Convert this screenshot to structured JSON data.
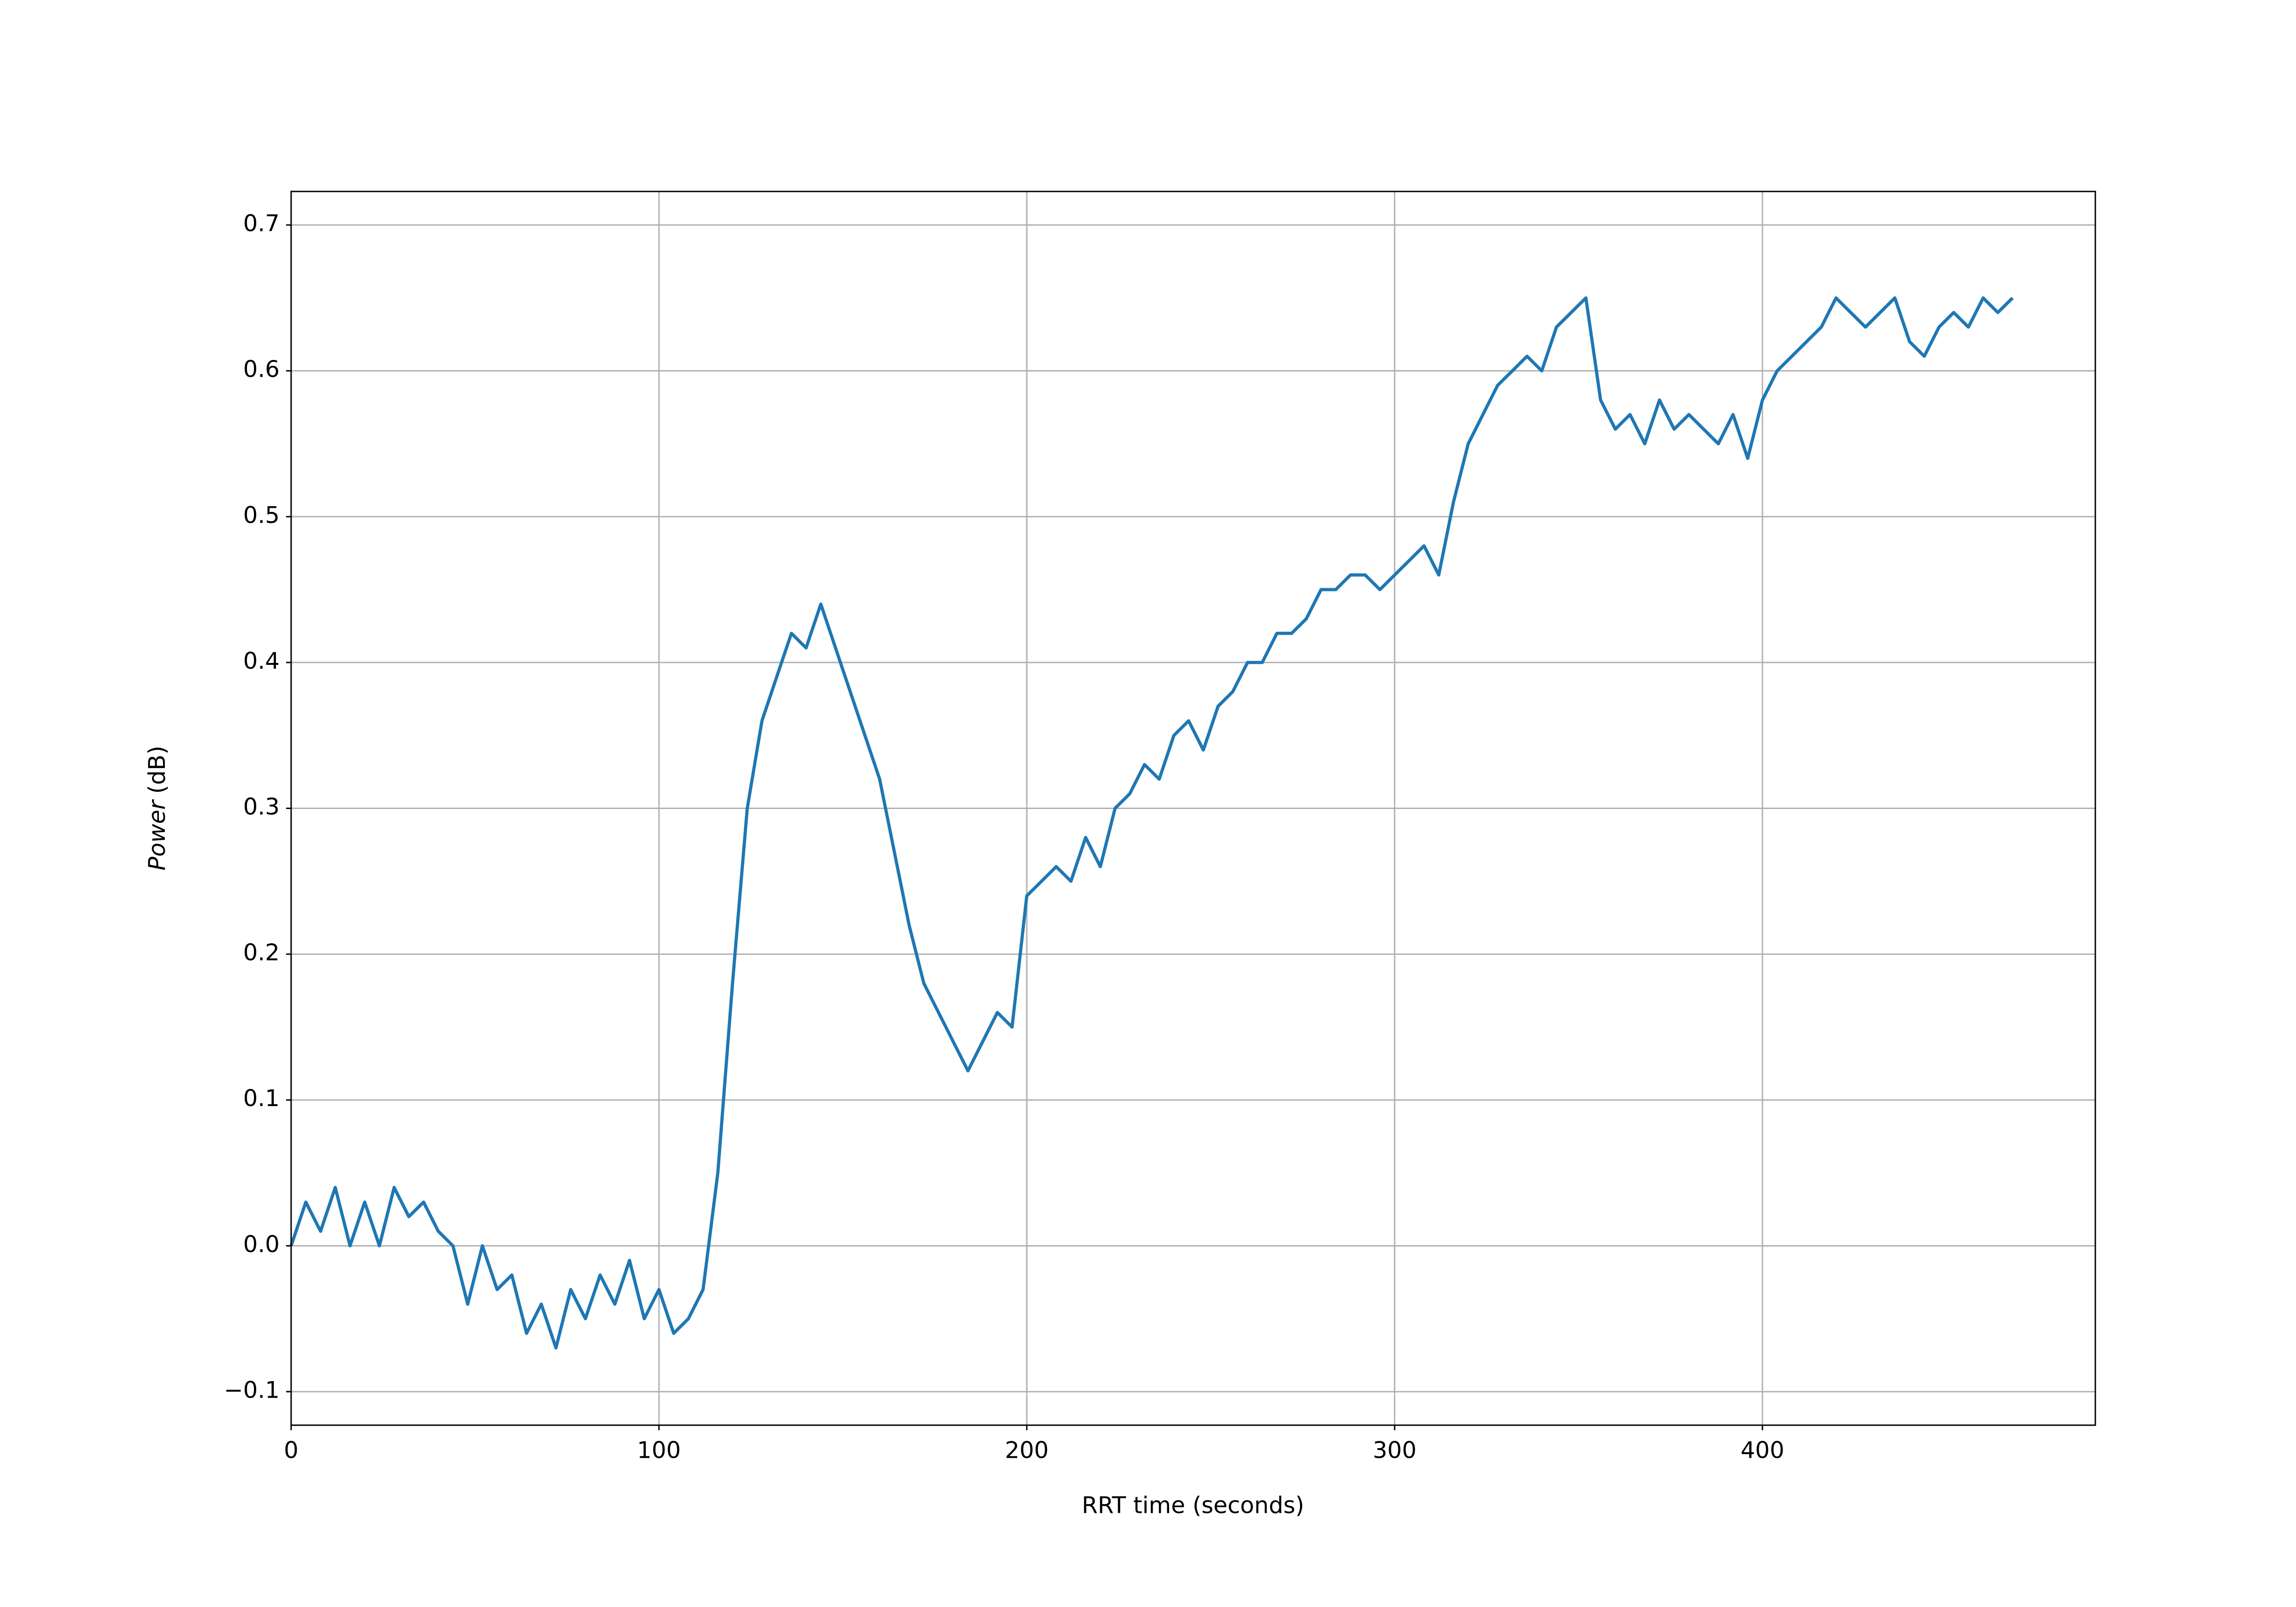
{
  "chart_data": {
    "type": "line",
    "xlabel": "RRT time (seconds)",
    "ylabel": [
      "Power",
      "(dB)"
    ],
    "color": "#1f77b4",
    "grid": true,
    "xlim": [
      0,
      490.5
    ],
    "ylim": [
      -0.123,
      0.723
    ],
    "xticks": [
      0,
      100,
      200,
      300,
      400
    ],
    "yticks": [
      {
        "value": -0.1,
        "label": "−0.1"
      },
      {
        "value": 0,
        "label": "0.0"
      },
      0.1,
      0.2,
      0.3,
      0.4,
      0.5,
      0.6,
      0.7
    ],
    "x": [
      0,
      4,
      8,
      12,
      16,
      20,
      24,
      28,
      32,
      36,
      40,
      44,
      48,
      52,
      56,
      60,
      64,
      68,
      72,
      76,
      80,
      84,
      88,
      92,
      96,
      100,
      104,
      108,
      112,
      116,
      120,
      124,
      128,
      132,
      136,
      140,
      144,
      148,
      152,
      156,
      160,
      164,
      168,
      172,
      176,
      180,
      184,
      188,
      192,
      196,
      200,
      204,
      208,
      212,
      216,
      220,
      224,
      228,
      232,
      236,
      240,
      244,
      248,
      252,
      256,
      260,
      264,
      268,
      272,
      276,
      280,
      284,
      288,
      292,
      296,
      300,
      304,
      308,
      312,
      316,
      320,
      324,
      328,
      332,
      336,
      340,
      344,
      348,
      352,
      356,
      360,
      364,
      368,
      372,
      376,
      380,
      384,
      388,
      392,
      396,
      400,
      404,
      408,
      412,
      416,
      420,
      424,
      428,
      432,
      436,
      440,
      444,
      448,
      452,
      456,
      460,
      464,
      468
    ],
    "values": [
      0.0,
      0.03,
      0.01,
      0.04,
      0.0,
      0.03,
      0.0,
      0.04,
      0.02,
      0.03,
      0.01,
      0.0,
      -0.04,
      0.0,
      -0.03,
      -0.02,
      -0.06,
      -0.04,
      -0.07,
      -0.03,
      -0.05,
      -0.02,
      -0.04,
      -0.01,
      -0.05,
      -0.03,
      -0.06,
      -0.05,
      -0.03,
      0.05,
      0.18,
      0.3,
      0.36,
      0.39,
      0.42,
      0.41,
      0.44,
      0.41,
      0.38,
      0.35,
      0.32,
      0.27,
      0.22,
      0.18,
      0.16,
      0.14,
      0.12,
      0.14,
      0.16,
      0.15,
      0.24,
      0.25,
      0.26,
      0.25,
      0.28,
      0.26,
      0.3,
      0.31,
      0.33,
      0.32,
      0.35,
      0.36,
      0.34,
      0.37,
      0.38,
      0.4,
      0.4,
      0.42,
      0.42,
      0.43,
      0.45,
      0.45,
      0.46,
      0.46,
      0.45,
      0.46,
      0.47,
      0.48,
      0.46,
      0.51,
      0.55,
      0.57,
      0.59,
      0.6,
      0.61,
      0.6,
      0.63,
      0.64,
      0.65,
      0.58,
      0.56,
      0.57,
      0.55,
      0.58,
      0.56,
      0.57,
      0.56,
      0.55,
      0.57,
      0.54,
      0.58,
      0.6,
      0.61,
      0.62,
      0.63,
      0.65,
      0.64,
      0.63,
      0.64,
      0.65,
      0.62,
      0.61,
      0.63,
      0.64,
      0.63,
      0.65,
      0.64,
      0.65
    ]
  }
}
